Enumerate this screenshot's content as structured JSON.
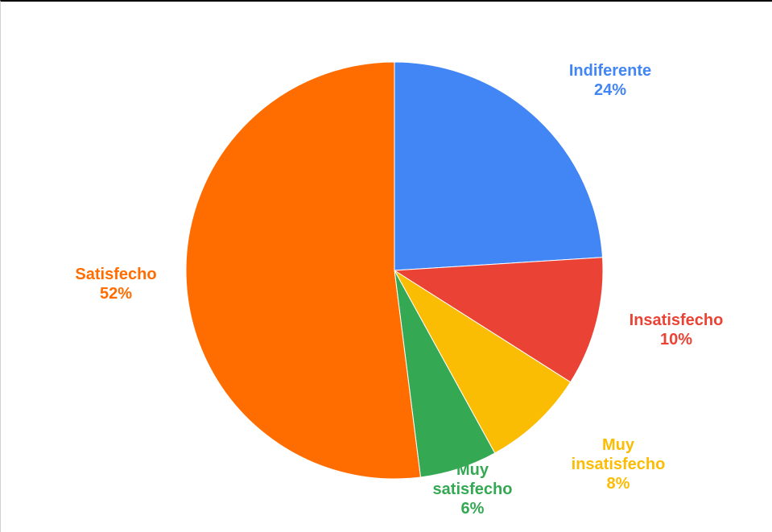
{
  "chart_data": {
    "type": "pie",
    "title": "",
    "slices": [
      {
        "name": "Indiferente",
        "value": 24,
        "value_label": "24%",
        "color": "#4285F4",
        "label_lines": [
          "Indiferente",
          "24%"
        ]
      },
      {
        "name": "Insatisfecho",
        "value": 10,
        "value_label": "10%",
        "color": "#EA4335",
        "label_lines": [
          "Insatisfecho",
          "10%"
        ]
      },
      {
        "name": "Muy insatisfecho",
        "value": 8,
        "value_label": "8%",
        "color": "#FBBC04",
        "label_lines": [
          "Muy",
          "insatisfecho",
          "8%"
        ]
      },
      {
        "name": "Muy satisfecho",
        "value": 6,
        "value_label": "6%",
        "color": "#34A853",
        "label_lines": [
          "Muy",
          "satisfecho",
          "6%"
        ]
      },
      {
        "name": "Satisfecho",
        "value": 52,
        "value_label": "52%",
        "color": "#FF6D01",
        "label_lines": [
          "Satisfecho",
          "52%"
        ]
      }
    ],
    "start_angle_deg": 0,
    "direction": "clockwise",
    "legend": "none",
    "labels": "outside"
  }
}
